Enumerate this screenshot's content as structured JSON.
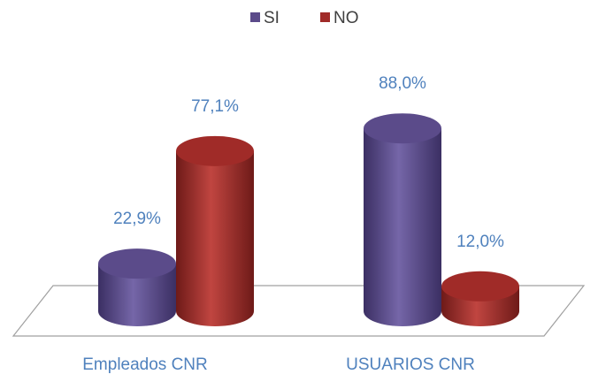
{
  "chart_data": {
    "type": "bar3d",
    "categories": [
      "Empleados CNR",
      "USUARIOS CNR"
    ],
    "series": [
      {
        "name": "SI",
        "color": "#5b4b8a",
        "values": [
          22.9,
          88.0
        ],
        "value_labels": [
          "22,9%",
          "88,0%"
        ]
      },
      {
        "name": "NO",
        "color": "#a02b28",
        "values": [
          77.1,
          12.0
        ],
        "value_labels": [
          "77,1%",
          "12,0%"
        ]
      }
    ],
    "legend": "top"
  }
}
